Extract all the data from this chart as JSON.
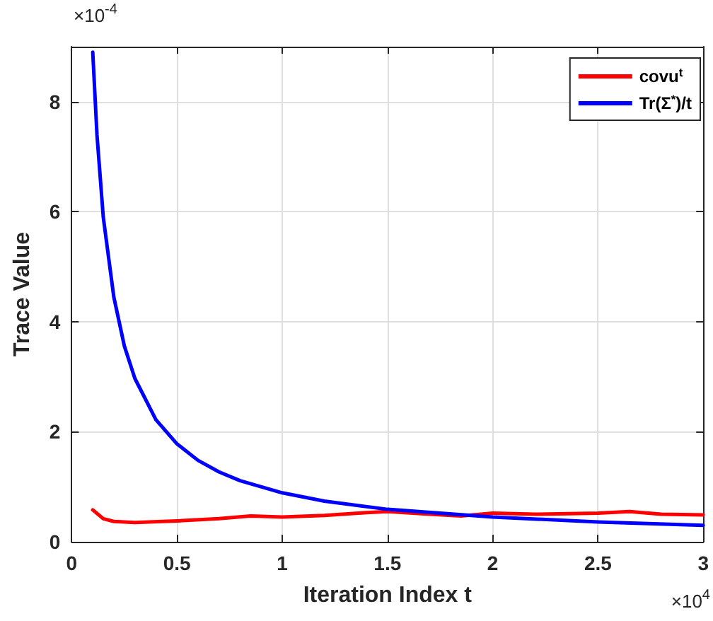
{
  "chart_data": {
    "type": "line",
    "xlabel": "Iteration Index t",
    "ylabel": "Trace Value",
    "annotations": [
      "×10$^{-4}$",
      "×10$^{4}$"
    ],
    "xlim": [
      0,
      3
    ],
    "xticks": [
      0,
      0.5,
      1,
      1.5,
      2,
      2.5,
      3
    ],
    "ylim": [
      0,
      9
    ],
    "yticks": [
      0,
      2,
      4,
      6,
      8
    ],
    "grid": true,
    "legend": "top right",
    "marker": "none",
    "line_style": "solid",
    "series": [
      {
        "name": "covu$^{t}$",
        "color": "#ff0000",
        "x": [
          0.1,
          0.15,
          0.2,
          0.3,
          0.5,
          0.7,
          0.85,
          1.0,
          1.2,
          1.4,
          1.5,
          1.7,
          1.85,
          2.0,
          2.2,
          2.5,
          2.65,
          2.8,
          3.0
        ],
        "values": [
          0.58,
          0.42,
          0.37,
          0.35,
          0.38,
          0.42,
          0.47,
          0.45,
          0.48,
          0.53,
          0.55,
          0.5,
          0.47,
          0.52,
          0.5,
          0.52,
          0.55,
          0.5,
          0.49
        ]
      },
      {
        "name": "Tr(Σ$^{*}$)/t",
        "color": "#0000ff",
        "x": [
          0.1,
          0.12,
          0.15,
          0.2,
          0.25,
          0.3,
          0.4,
          0.5,
          0.6,
          0.7,
          0.8,
          1.0,
          1.2,
          1.5,
          2.0,
          2.5,
          3.0
        ],
        "values": [
          8.9,
          7.4,
          5.9,
          4.45,
          3.56,
          2.97,
          2.22,
          1.78,
          1.48,
          1.27,
          1.11,
          0.89,
          0.74,
          0.59,
          0.45,
          0.36,
          0.3
        ]
      }
    ]
  }
}
